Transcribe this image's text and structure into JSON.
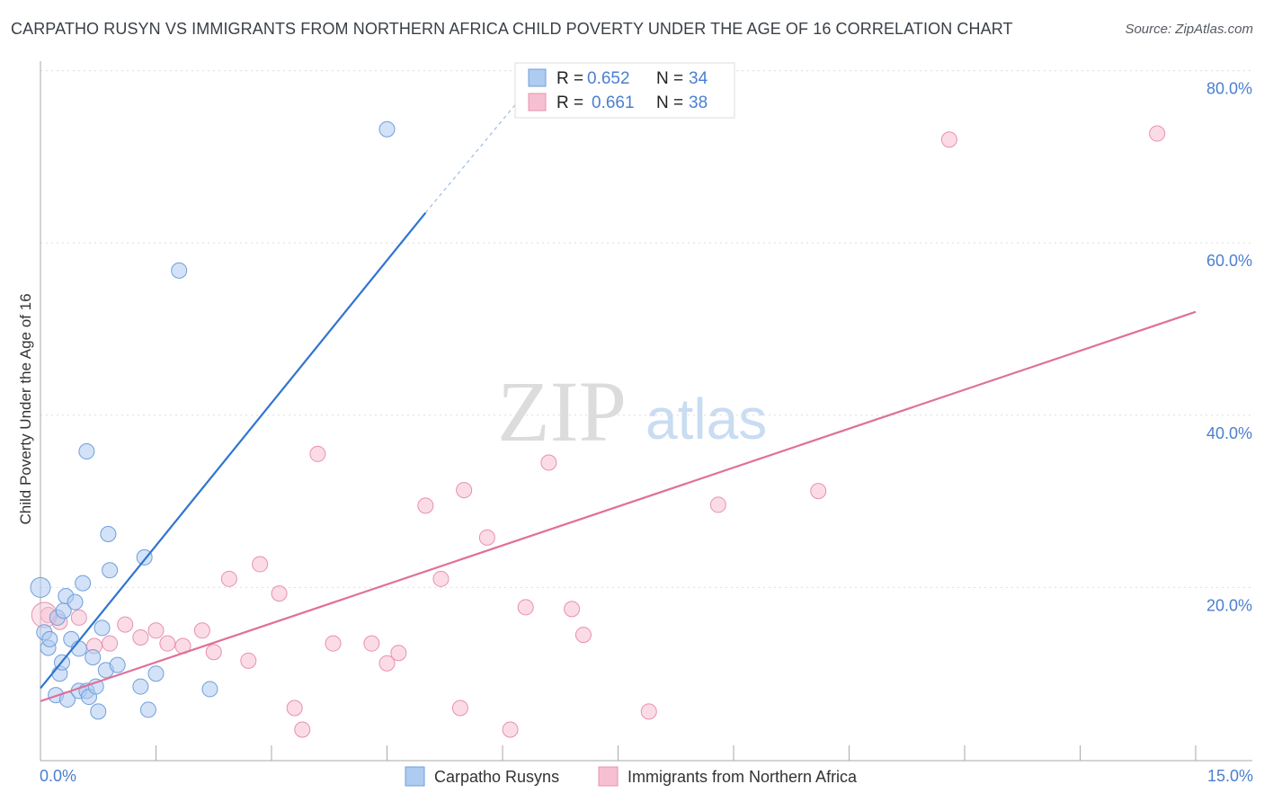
{
  "title": "CARPATHO RUSYN VS IMMIGRANTS FROM NORTHERN AFRICA CHILD POVERTY UNDER THE AGE OF 16 CORRELATION CHART",
  "source": "Source: ZipAtlas.com",
  "watermark": {
    "zip": "ZIP",
    "atlas": "atlas"
  },
  "colors": {
    "blue_fill": "#aecbf0",
    "blue_stroke": "#6f9fdc",
    "blue_line": "#2f74d0",
    "pink_fill": "#f7c0d2",
    "pink_stroke": "#e890b0",
    "pink_line": "#e07098",
    "label_blue": "#4a7fd0",
    "grid": "#dddddd"
  },
  "legend": {
    "series1": {
      "r_label": "R = ",
      "r_value": "0.652",
      "n_label": "N = ",
      "n_value": "34"
    },
    "series2": {
      "r_label": "R = ",
      "r_value": "0.661",
      "n_label": "N = ",
      "n_value": "38"
    }
  },
  "chart_data": {
    "type": "scatter",
    "title": "CARPATHO RUSYN VS IMMIGRANTS FROM NORTHERN AFRICA CHILD POVERTY UNDER THE AGE OF 16 CORRELATION CHART",
    "xlabel": "",
    "ylabel": "Child Poverty Under the Age of 16",
    "xlim": [
      0,
      15
    ],
    "ylim": [
      0,
      80
    ],
    "x_tick_labels": [
      "0.0%",
      "15.0%"
    ],
    "y_ticks": [
      20,
      40,
      60,
      80
    ],
    "y_tick_labels": [
      "20.0%",
      "40.0%",
      "60.0%",
      "80.0%"
    ],
    "series": [
      {
        "name": "Carpatho Rusyns",
        "color": "blue",
        "trendline": {
          "x": [
            0.0,
            5.0
          ],
          "y": [
            8.3,
            63.5
          ],
          "dashed_extension_to": [
            6.3,
            77.5
          ]
        },
        "points": [
          [
            0.0,
            20.0
          ],
          [
            0.05,
            14.8
          ],
          [
            0.1,
            13.0
          ],
          [
            0.12,
            14.0
          ],
          [
            0.2,
            7.5
          ],
          [
            0.22,
            16.5
          ],
          [
            0.25,
            10.0
          ],
          [
            0.28,
            11.3
          ],
          [
            0.3,
            17.3
          ],
          [
            0.33,
            19.0
          ],
          [
            0.35,
            7.0
          ],
          [
            0.4,
            14.0
          ],
          [
            0.45,
            18.3
          ],
          [
            0.5,
            12.9
          ],
          [
            0.5,
            8.0
          ],
          [
            0.55,
            20.5
          ],
          [
            0.6,
            8.0
          ],
          [
            0.63,
            7.3
          ],
          [
            0.68,
            11.9
          ],
          [
            0.72,
            8.5
          ],
          [
            0.75,
            5.6
          ],
          [
            0.8,
            15.3
          ],
          [
            0.85,
            10.4
          ],
          [
            0.88,
            26.2
          ],
          [
            0.9,
            22.0
          ],
          [
            0.6,
            35.8
          ],
          [
            1.0,
            11.0
          ],
          [
            1.3,
            8.5
          ],
          [
            1.35,
            23.5
          ],
          [
            1.4,
            5.8
          ],
          [
            1.5,
            10.0
          ],
          [
            1.8,
            56.8
          ],
          [
            2.2,
            8.2
          ],
          [
            4.5,
            73.2
          ]
        ]
      },
      {
        "name": "Immigrants from Northern Africa",
        "color": "pink",
        "trendline": {
          "x": [
            0.0,
            15.0
          ],
          "y": [
            6.8,
            52.0
          ]
        },
        "points": [
          [
            0.1,
            16.8
          ],
          [
            0.25,
            16.0
          ],
          [
            0.5,
            16.5
          ],
          [
            0.7,
            13.2
          ],
          [
            0.9,
            13.5
          ],
          [
            1.1,
            15.7
          ],
          [
            1.3,
            14.2
          ],
          [
            1.5,
            15.0
          ],
          [
            1.65,
            13.5
          ],
          [
            1.85,
            13.2
          ],
          [
            2.1,
            15.0
          ],
          [
            2.25,
            12.5
          ],
          [
            2.45,
            21.0
          ],
          [
            2.7,
            11.5
          ],
          [
            2.85,
            22.7
          ],
          [
            3.1,
            19.3
          ],
          [
            3.3,
            6.0
          ],
          [
            3.4,
            3.5
          ],
          [
            3.6,
            35.5
          ],
          [
            3.8,
            13.5
          ],
          [
            4.3,
            13.5
          ],
          [
            4.5,
            11.2
          ],
          [
            4.65,
            12.4
          ],
          [
            5.0,
            29.5
          ],
          [
            5.2,
            21.0
          ],
          [
            5.45,
            6.0
          ],
          [
            5.5,
            31.3
          ],
          [
            5.8,
            25.8
          ],
          [
            6.1,
            3.5
          ],
          [
            6.3,
            17.7
          ],
          [
            6.6,
            34.5
          ],
          [
            6.9,
            17.5
          ],
          [
            7.05,
            14.5
          ],
          [
            7.9,
            5.6
          ],
          [
            8.8,
            29.6
          ],
          [
            10.1,
            31.2
          ],
          [
            11.8,
            72.0
          ],
          [
            14.5,
            72.7
          ]
        ]
      }
    ]
  }
}
